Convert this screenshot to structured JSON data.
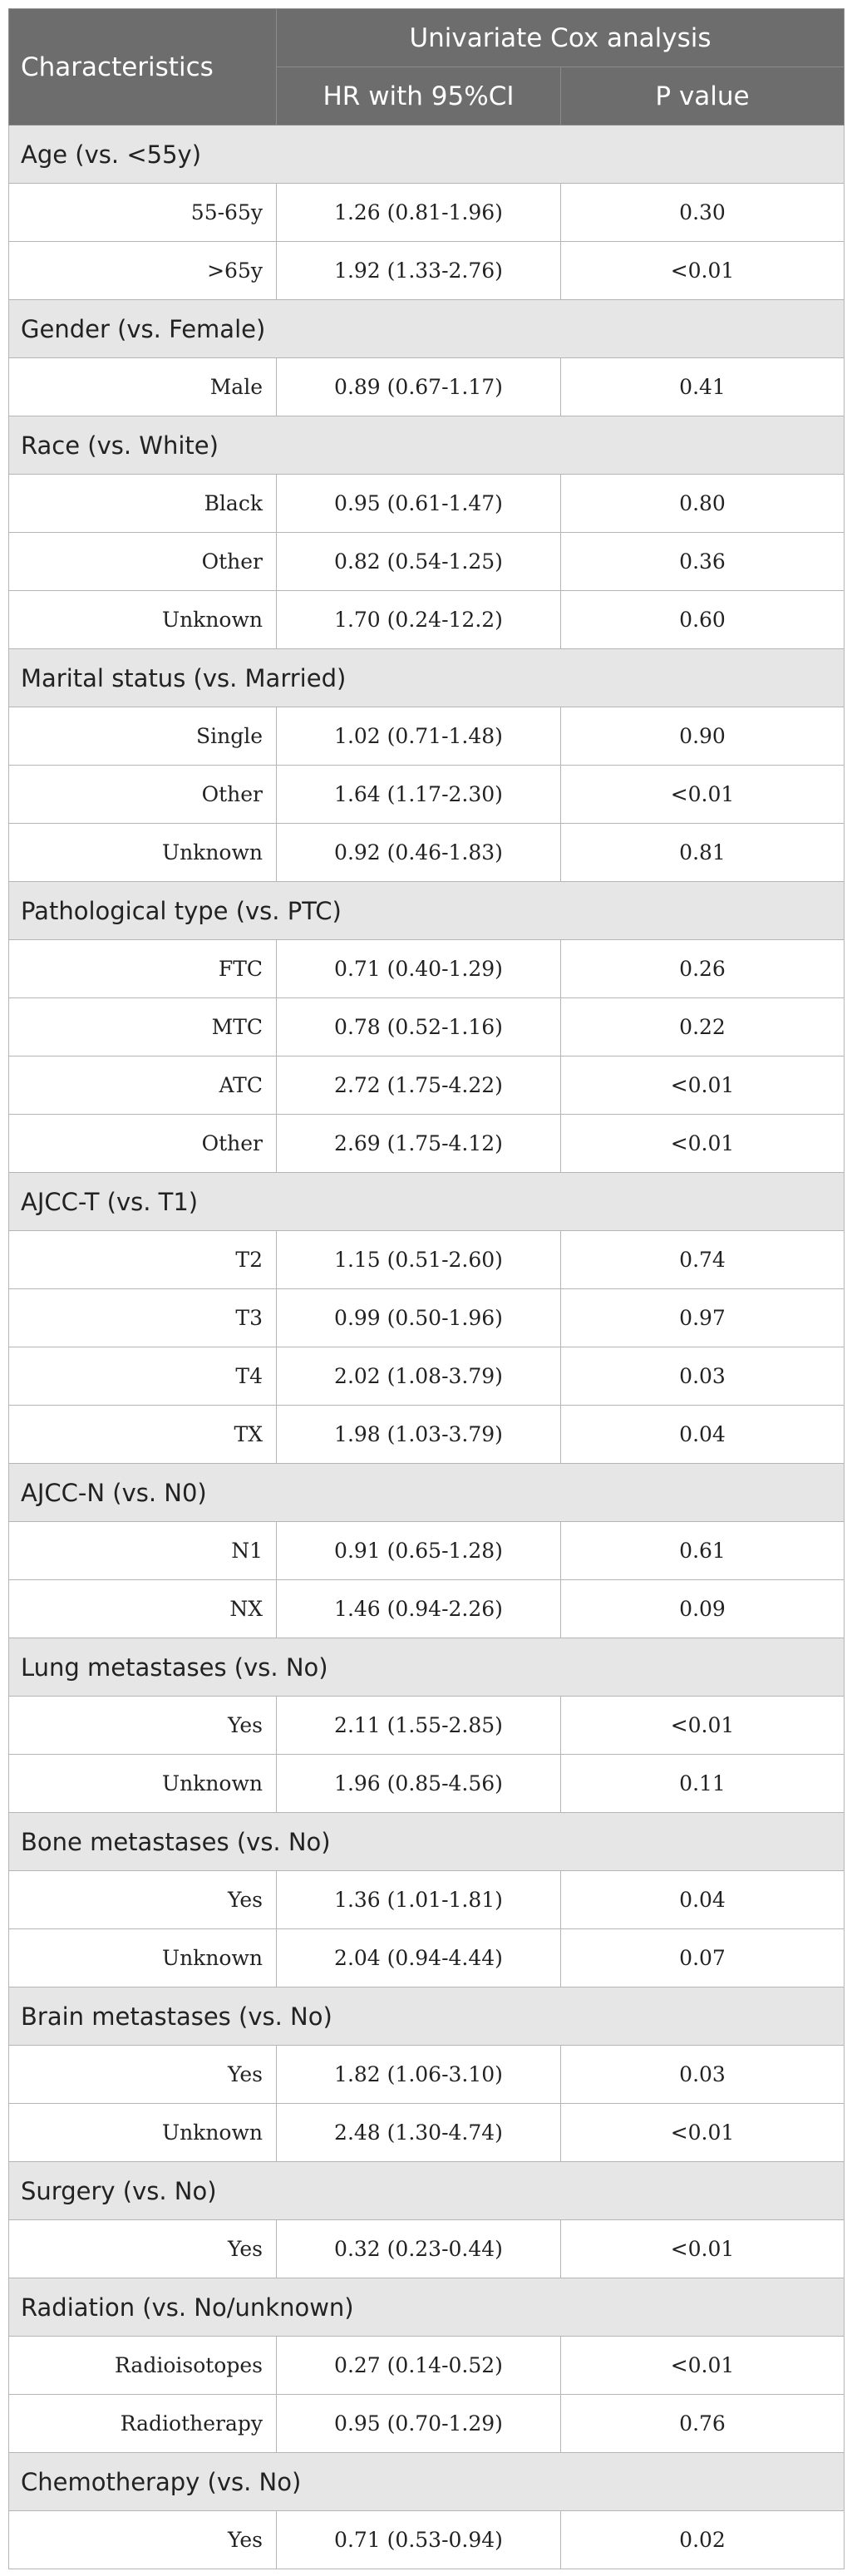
{
  "header": {
    "characteristics": "Characteristics",
    "analysis": "Univariate Cox analysis",
    "hr_col": "HR with 95%CI",
    "p_col": "P value"
  },
  "groups": [
    {
      "label": "Age (vs. <55y)",
      "rows": [
        {
          "category": "55-65y",
          "hr": "1.26 (0.81-1.96)",
          "p": "0.30"
        },
        {
          "category": ">65y",
          "hr": "1.92 (1.33-2.76)",
          "p": "<0.01"
        }
      ]
    },
    {
      "label": "Gender (vs. Female)",
      "rows": [
        {
          "category": "Male",
          "hr": "0.89 (0.67-1.17)",
          "p": "0.41"
        }
      ]
    },
    {
      "label": "Race (vs. White)",
      "rows": [
        {
          "category": "Black",
          "hr": "0.95 (0.61-1.47)",
          "p": "0.80"
        },
        {
          "category": "Other",
          "hr": "0.82 (0.54-1.25)",
          "p": "0.36"
        },
        {
          "category": "Unknown",
          "hr": "1.70 (0.24-12.2)",
          "p": "0.60"
        }
      ]
    },
    {
      "label": "Marital status (vs. Married)",
      "rows": [
        {
          "category": "Single",
          "hr": "1.02 (0.71-1.48)",
          "p": "0.90"
        },
        {
          "category": "Other",
          "hr": "1.64 (1.17-2.30)",
          "p": "<0.01"
        },
        {
          "category": "Unknown",
          "hr": "0.92 (0.46-1.83)",
          "p": "0.81"
        }
      ]
    },
    {
      "label": "Pathological type (vs. PTC)",
      "rows": [
        {
          "category": "FTC",
          "hr": "0.71 (0.40-1.29)",
          "p": "0.26"
        },
        {
          "category": "MTC",
          "hr": "0.78 (0.52-1.16)",
          "p": "0.22"
        },
        {
          "category": "ATC",
          "hr": "2.72 (1.75-4.22)",
          "p": "<0.01"
        },
        {
          "category": "Other",
          "hr": "2.69 (1.75-4.12)",
          "p": "<0.01"
        }
      ]
    },
    {
      "label": "AJCC-T (vs. T1)",
      "rows": [
        {
          "category": "T2",
          "hr": "1.15 (0.51-2.60)",
          "p": "0.74"
        },
        {
          "category": "T3",
          "hr": "0.99 (0.50-1.96)",
          "p": "0.97"
        },
        {
          "category": "T4",
          "hr": "2.02 (1.08-3.79)",
          "p": "0.03"
        },
        {
          "category": "TX",
          "hr": "1.98 (1.03-3.79)",
          "p": "0.04"
        }
      ]
    },
    {
      "label": "AJCC-N (vs. N0)",
      "rows": [
        {
          "category": "N1",
          "hr": "0.91 (0.65-1.28)",
          "p": "0.61"
        },
        {
          "category": "NX",
          "hr": "1.46 (0.94-2.26)",
          "p": "0.09"
        }
      ]
    },
    {
      "label": "Lung metastases (vs. No)",
      "rows": [
        {
          "category": "Yes",
          "hr": "2.11 (1.55-2.85)",
          "p": "<0.01"
        },
        {
          "category": "Unknown",
          "hr": "1.96 (0.85-4.56)",
          "p": "0.11"
        }
      ]
    },
    {
      "label": "Bone metastases (vs. No)",
      "rows": [
        {
          "category": "Yes",
          "hr": "1.36 (1.01-1.81)",
          "p": "0.04"
        },
        {
          "category": "Unknown",
          "hr": "2.04 (0.94-4.44)",
          "p": "0.07"
        }
      ]
    },
    {
      "label": "Brain metastases (vs. No)",
      "rows": [
        {
          "category": "Yes",
          "hr": "1.82 (1.06-3.10)",
          "p": "0.03"
        },
        {
          "category": "Unknown",
          "hr": "2.48 (1.30-4.74)",
          "p": "<0.01"
        }
      ]
    },
    {
      "label": "Surgery (vs. No)",
      "rows": [
        {
          "category": "Yes",
          "hr": "0.32 (0.23-0.44)",
          "p": "<0.01"
        }
      ]
    },
    {
      "label": "Radiation (vs. No/unknown)",
      "rows": [
        {
          "category": "Radioisotopes",
          "hr": "0.27 (0.14-0.52)",
          "p": "<0.01"
        },
        {
          "category": "Radiotherapy",
          "hr": "0.95 (0.70-1.29)",
          "p": "0.76"
        }
      ]
    },
    {
      "label": "Chemotherapy (vs. No)",
      "rows": [
        {
          "category": "Yes",
          "hr": "0.71 (0.53-0.94)",
          "p": "0.02"
        }
      ]
    }
  ]
}
